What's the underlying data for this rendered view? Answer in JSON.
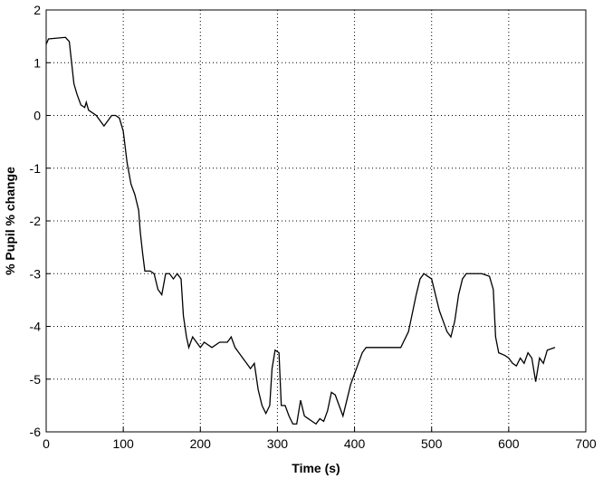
{
  "chart_data": {
    "type": "line",
    "xlabel": "Time (s)",
    "ylabel": "% Pupil % change",
    "x": [
      0,
      3,
      25,
      30,
      33,
      36,
      40,
      45,
      50,
      52,
      55,
      60,
      65,
      70,
      75,
      80,
      85,
      90,
      95,
      100,
      105,
      110,
      115,
      120,
      122,
      125,
      128,
      135,
      140,
      145,
      150,
      155,
      160,
      165,
      170,
      175,
      178,
      182,
      185,
      190,
      195,
      200,
      205,
      215,
      225,
      235,
      240,
      245,
      250,
      255,
      260,
      265,
      270,
      275,
      280,
      285,
      290,
      293,
      297,
      302,
      305,
      310,
      315,
      320,
      325,
      330,
      335,
      340,
      345,
      350,
      355,
      360,
      365,
      370,
      375,
      380,
      385,
      390,
      395,
      400,
      410,
      415,
      440,
      460,
      470,
      480,
      485,
      490,
      495,
      500,
      505,
      510,
      515,
      520,
      525,
      530,
      535,
      540,
      545,
      555,
      565,
      575,
      580,
      583,
      587,
      595,
      600,
      605,
      610,
      615,
      620,
      625,
      630,
      635,
      640,
      645,
      650,
      660
    ],
    "series": [
      {
        "color": "#000000",
        "values": [
          1.35,
          1.45,
          1.48,
          1.4,
          1.0,
          0.6,
          0.4,
          0.2,
          0.15,
          0.25,
          0.1,
          0.05,
          0.0,
          -0.1,
          -0.2,
          -0.1,
          0.0,
          0.0,
          -0.05,
          -0.3,
          -0.9,
          -1.3,
          -1.5,
          -1.8,
          -2.2,
          -2.6,
          -2.95,
          -2.95,
          -3.0,
          -3.3,
          -3.4,
          -3.0,
          -3.0,
          -3.1,
          -3.0,
          -3.1,
          -3.8,
          -4.2,
          -4.4,
          -4.2,
          -4.3,
          -4.4,
          -4.3,
          -4.4,
          -4.3,
          -4.3,
          -4.2,
          -4.4,
          -4.5,
          -4.6,
          -4.7,
          -4.8,
          -4.7,
          -5.2,
          -5.5,
          -5.65,
          -5.5,
          -4.8,
          -4.45,
          -4.5,
          -5.5,
          -5.5,
          -5.7,
          -5.85,
          -5.85,
          -5.4,
          -5.7,
          -5.75,
          -5.8,
          -5.85,
          -5.75,
          -5.8,
          -5.6,
          -5.25,
          -5.3,
          -5.5,
          -5.7,
          -5.4,
          -5.1,
          -4.9,
          -4.5,
          -4.4,
          -4.4,
          -4.4,
          -4.1,
          -3.4,
          -3.1,
          -3.0,
          -3.05,
          -3.1,
          -3.4,
          -3.7,
          -3.9,
          -4.1,
          -4.2,
          -3.9,
          -3.4,
          -3.1,
          -3.0,
          -3.0,
          -3.0,
          -3.05,
          -3.3,
          -4.2,
          -4.5,
          -4.55,
          -4.6,
          -4.7,
          -4.75,
          -4.6,
          -4.7,
          -4.5,
          -4.6,
          -5.05,
          -4.6,
          -4.7,
          -4.45,
          -4.4
        ]
      }
    ],
    "xlim": [
      0,
      700
    ],
    "xticks": [
      0,
      100,
      200,
      300,
      400,
      500,
      600,
      700
    ],
    "ylim": [
      -6,
      2
    ],
    "yticks": [
      2,
      1,
      0,
      -1,
      -2,
      -3,
      -4,
      -5,
      -6
    ],
    "grid": true
  }
}
